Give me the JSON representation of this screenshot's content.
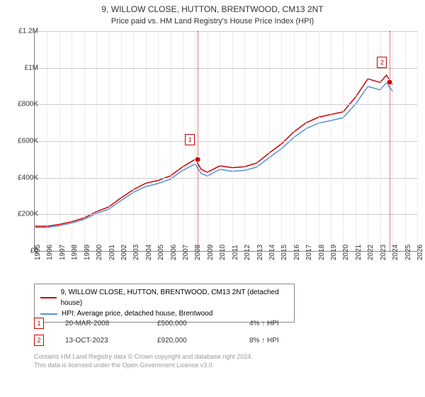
{
  "title": "9, WILLOW CLOSE, HUTTON, BRENTWOOD, CM13 2NT",
  "subtitle": "Price paid vs. HM Land Registry's House Price Index (HPI)",
  "chart": {
    "type": "line",
    "xlim": [
      1995,
      2026
    ],
    "ylim": [
      0,
      1200000
    ],
    "ytick_step": 200000,
    "yticks": [
      "£0",
      "£200K",
      "£400K",
      "£600K",
      "£800K",
      "£1M",
      "£1.2M"
    ],
    "xticks": [
      1995,
      1996,
      1997,
      1998,
      1999,
      2000,
      2001,
      2002,
      2003,
      2004,
      2005,
      2006,
      2007,
      2008,
      2009,
      2010,
      2011,
      2012,
      2013,
      2014,
      2015,
      2016,
      2017,
      2018,
      2019,
      2020,
      2021,
      2022,
      2023,
      2024,
      2025,
      2026
    ],
    "background_color": "#ffffff",
    "grid_color": "#cccccc",
    "vgrid_color": "#d8d8d8",
    "axis_color": "#888888",
    "series": [
      {
        "name": "property",
        "label": "9, WILLOW CLOSE, HUTTON, BRENTWOOD, CM13 2NT (detached house)",
        "color": "#cc0000",
        "line_width": 1.5,
        "data": [
          [
            1995,
            135000
          ],
          [
            1996,
            135000
          ],
          [
            1997,
            145000
          ],
          [
            1998,
            160000
          ],
          [
            1999,
            180000
          ],
          [
            2000,
            215000
          ],
          [
            2001,
            240000
          ],
          [
            2002,
            290000
          ],
          [
            2003,
            335000
          ],
          [
            2004,
            370000
          ],
          [
            2005,
            385000
          ],
          [
            2006,
            410000
          ],
          [
            2007,
            460000
          ],
          [
            2008,
            500000
          ],
          [
            2008.5,
            445000
          ],
          [
            2009,
            430000
          ],
          [
            2010,
            465000
          ],
          [
            2011,
            455000
          ],
          [
            2012,
            460000
          ],
          [
            2013,
            480000
          ],
          [
            2014,
            535000
          ],
          [
            2015,
            585000
          ],
          [
            2016,
            650000
          ],
          [
            2017,
            700000
          ],
          [
            2018,
            730000
          ],
          [
            2019,
            745000
          ],
          [
            2020,
            760000
          ],
          [
            2021,
            840000
          ],
          [
            2022,
            940000
          ],
          [
            2023,
            920000
          ],
          [
            2023.5,
            960000
          ],
          [
            2024,
            910000
          ]
        ]
      },
      {
        "name": "hpi",
        "label": "HPI: Average price, detached house, Brentwood",
        "color": "#5b8fd6",
        "line_width": 1.5,
        "data": [
          [
            1995,
            128000
          ],
          [
            1996,
            128000
          ],
          [
            1997,
            138000
          ],
          [
            1998,
            152000
          ],
          [
            1999,
            172000
          ],
          [
            2000,
            205000
          ],
          [
            2001,
            228000
          ],
          [
            2002,
            275000
          ],
          [
            2003,
            320000
          ],
          [
            2004,
            352000
          ],
          [
            2005,
            368000
          ],
          [
            2006,
            392000
          ],
          [
            2007,
            440000
          ],
          [
            2008,
            475000
          ],
          [
            2008.5,
            422000
          ],
          [
            2009,
            410000
          ],
          [
            2010,
            445000
          ],
          [
            2011,
            435000
          ],
          [
            2012,
            440000
          ],
          [
            2013,
            458000
          ],
          [
            2014,
            510000
          ],
          [
            2015,
            558000
          ],
          [
            2016,
            620000
          ],
          [
            2017,
            668000
          ],
          [
            2018,
            698000
          ],
          [
            2019,
            712000
          ],
          [
            2020,
            728000
          ],
          [
            2021,
            802000
          ],
          [
            2022,
            898000
          ],
          [
            2023,
            880000
          ],
          [
            2023.5,
            918000
          ],
          [
            2024,
            872000
          ]
        ]
      }
    ],
    "markers": [
      {
        "num": "1",
        "x": 2008.22,
        "y": 500000
      },
      {
        "num": "2",
        "x": 2023.78,
        "y": 920000
      }
    ]
  },
  "legend": {
    "items": [
      {
        "color": "#cc0000",
        "label": "9, WILLOW CLOSE, HUTTON, BRENTWOOD, CM13 2NT (detached house)"
      },
      {
        "color": "#5b8fd6",
        "label": "HPI: Average price, detached house, Brentwood"
      }
    ]
  },
  "marker_rows": [
    {
      "num": "1",
      "date": "20-MAR-2008",
      "price": "£500,000",
      "hpi": "4% ↑ HPI"
    },
    {
      "num": "2",
      "date": "13-OCT-2023",
      "price": "£920,000",
      "hpi": "8% ↑ HPI"
    }
  ],
  "footer_line1": "Contains HM Land Registry data © Crown copyright and database right 2024.",
  "footer_line2": "This data is licensed under the Open Government Licence v3.0."
}
